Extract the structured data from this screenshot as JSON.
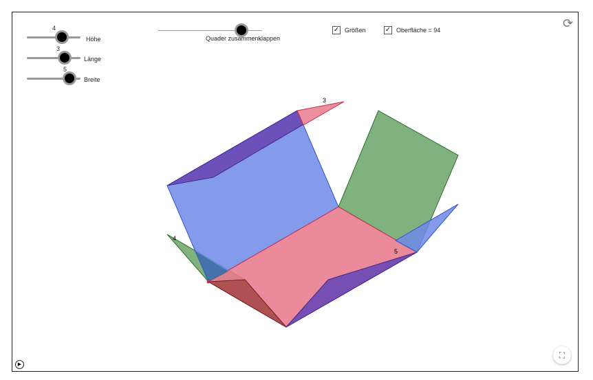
{
  "sliders": [
    {
      "name": "Höhe",
      "value": "4",
      "fraction": 0.65
    },
    {
      "name": "Länge",
      "value": "3",
      "fraction": 0.7
    },
    {
      "name": "Breite",
      "value": "5",
      "fraction": 0.8
    }
  ],
  "fold": {
    "label": "Quader zusammenklappen",
    "fraction": 0.8
  },
  "checkboxes": [
    {
      "label": "Größen",
      "checked": true
    },
    {
      "label": "Oberfläche = 94",
      "checked": true
    }
  ],
  "edge_labels": {
    "top": "3",
    "left": "4",
    "right": "5"
  },
  "colors": {
    "blue": "#6d8ae6",
    "red": "#e87a8c",
    "green": "#6aa56a",
    "purple": "#6a48b5"
  },
  "icons": {
    "reset": "refresh-icon",
    "fullscreen": "fullscreen-icon",
    "play": "play-icon"
  }
}
